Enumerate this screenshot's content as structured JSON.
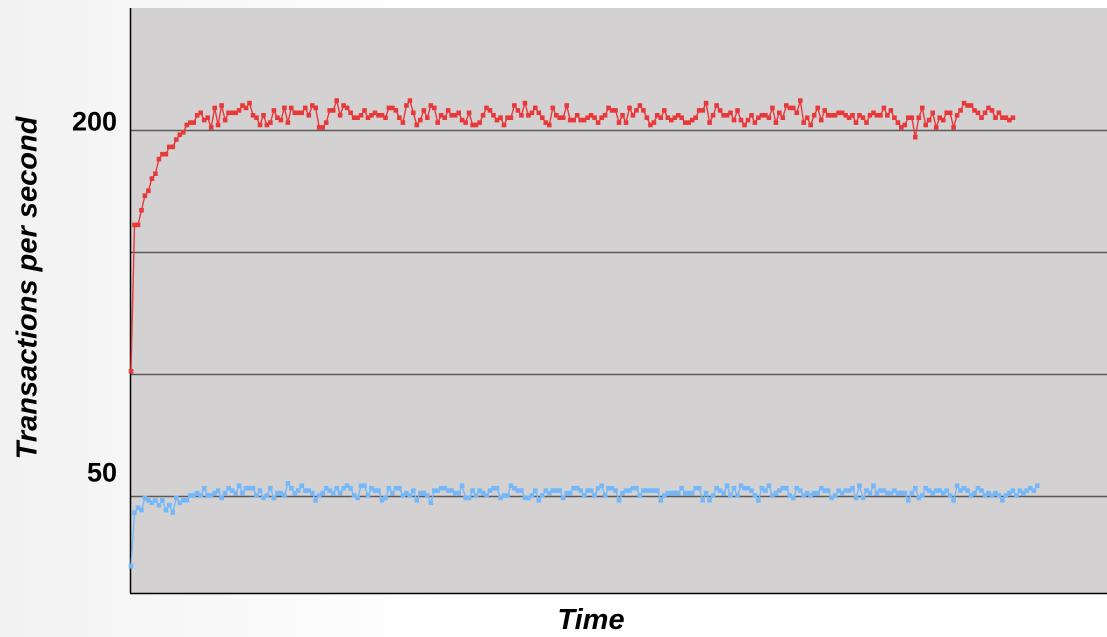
{
  "chart_data": {
    "type": "line",
    "title": "",
    "xlabel": "Time",
    "ylabel": "Transactions per second",
    "ytick_labels": [
      "50",
      "200"
    ],
    "ylim": [
      10,
      250
    ],
    "xlim": [
      0,
      280
    ],
    "grid": true,
    "legend": "none",
    "colors": {
      "plot_background": "#d4d1d3",
      "gridline": "#5a5a5a",
      "axis": "#000000"
    },
    "series": [
      {
        "color": "#e8393a",
        "values": [
          101,
          161,
          161,
          167,
          173,
          175,
          180,
          182,
          188,
          190,
          190,
          193,
          193,
          196,
          198,
          199,
          202,
          203,
          203,
          206,
          207,
          204,
          205,
          201,
          209,
          202,
          210,
          204,
          207,
          207,
          207,
          208,
          210,
          209,
          211,
          206,
          205,
          202,
          206,
          202,
          203,
          208,
          205,
          204,
          209,
          203,
          209,
          207,
          207,
          207,
          209,
          206,
          210,
          209,
          201,
          201,
          203,
          208,
          208,
          212,
          206,
          210,
          209,
          207,
          205,
          205,
          206,
          208,
          205,
          206,
          207,
          206,
          206,
          205,
          209,
          209,
          208,
          205,
          203,
          210,
          212,
          207,
          202,
          204,
          208,
          205,
          210,
          209,
          203,
          206,
          205,
          208,
          206,
          206,
          207,
          204,
          203,
          207,
          202,
          202,
          203,
          206,
          209,
          208,
          206,
          204,
          205,
          202,
          205,
          205,
          210,
          208,
          206,
          211,
          206,
          207,
          209,
          207,
          205,
          203,
          202,
          209,
          206,
          205,
          205,
          210,
          204,
          204,
          206,
          204,
          204,
          205,
          206,
          205,
          203,
          205,
          206,
          209,
          208,
          208,
          203,
          206,
          203,
          209,
          206,
          208,
          210,
          208,
          205,
          202,
          203,
          206,
          205,
          208,
          205,
          204,
          205,
          206,
          205,
          203,
          203,
          204,
          205,
          208,
          208,
          211,
          203,
          206,
          210,
          208,
          206,
          206,
          207,
          204,
          208,
          204,
          202,
          204,
          206,
          203,
          205,
          206,
          206,
          205,
          209,
          203,
          207,
          205,
          210,
          209,
          209,
          207,
          212,
          203,
          205,
          202,
          206,
          209,
          204,
          208,
          206,
          206,
          206,
          207,
          207,
          206,
          205,
          206,
          203,
          206,
          205,
          203,
          206,
          207,
          206,
          206,
          209,
          206,
          208,
          205,
          203,
          201,
          202,
          205,
          205,
          197,
          205,
          209,
          202,
          204,
          207,
          201,
          205,
          204,
          207,
          207,
          201,
          206,
          208,
          211,
          210,
          210,
          208,
          207,
          205,
          207,
          209,
          208,
          205,
          207,
          205,
          205,
          204,
          205
        ]
      },
      {
        "color": "#74b8fa",
        "values": [
          21,
          43,
          45,
          44,
          49,
          48,
          47,
          48,
          46,
          48,
          44,
          46,
          43,
          49,
          47,
          48,
          48,
          50,
          50,
          51,
          50,
          53,
          50,
          50,
          51,
          52,
          49,
          51,
          53,
          52,
          51,
          54,
          51,
          53,
          53,
          53,
          50,
          52,
          49,
          50,
          53,
          49,
          51,
          51,
          50,
          55,
          53,
          51,
          52,
          54,
          52,
          52,
          51,
          48,
          50,
          51,
          53,
          52,
          51,
          53,
          51,
          53,
          54,
          53,
          50,
          49,
          54,
          54,
          50,
          53,
          52,
          52,
          48,
          49,
          53,
          51,
          53,
          53,
          50,
          51,
          50,
          52,
          48,
          51,
          51,
          50,
          47,
          52,
          52,
          53,
          53,
          52,
          52,
          51,
          51,
          54,
          49,
          49,
          52,
          50,
          52,
          51,
          50,
          52,
          53,
          53,
          49,
          50,
          50,
          54,
          53,
          52,
          52,
          49,
          49,
          50,
          52,
          48,
          50,
          52,
          51,
          52,
          52,
          52,
          49,
          51,
          51,
          53,
          53,
          52,
          50,
          52,
          52,
          50,
          53,
          54,
          50,
          53,
          53,
          52,
          48,
          51,
          52,
          52,
          53,
          53,
          50,
          52,
          52,
          52,
          52,
          52,
          48,
          50,
          51,
          51,
          51,
          51,
          53,
          51,
          51,
          51,
          53,
          53,
          48,
          51,
          48,
          50,
          53,
          52,
          51,
          54,
          50,
          53,
          50,
          54,
          53,
          53,
          52,
          50,
          48,
          53,
          52,
          54,
          50,
          51,
          52,
          53,
          53,
          50,
          49,
          53,
          52,
          50,
          51,
          50,
          51,
          51,
          53,
          52,
          52,
          49,
          50,
          52,
          51,
          52,
          52,
          53,
          49,
          54,
          49,
          52,
          51,
          54,
          51,
          52,
          52,
          51,
          51,
          52,
          51,
          51,
          51,
          48,
          51,
          53,
          49,
          50,
          53,
          52,
          51,
          52,
          52,
          51,
          52,
          50,
          48,
          54,
          52,
          53,
          52,
          50,
          51,
          53,
          52,
          50,
          51,
          50,
          51,
          50,
          48,
          50,
          51,
          52,
          50,
          52,
          51,
          52,
          53,
          52,
          54
        ]
      }
    ]
  }
}
